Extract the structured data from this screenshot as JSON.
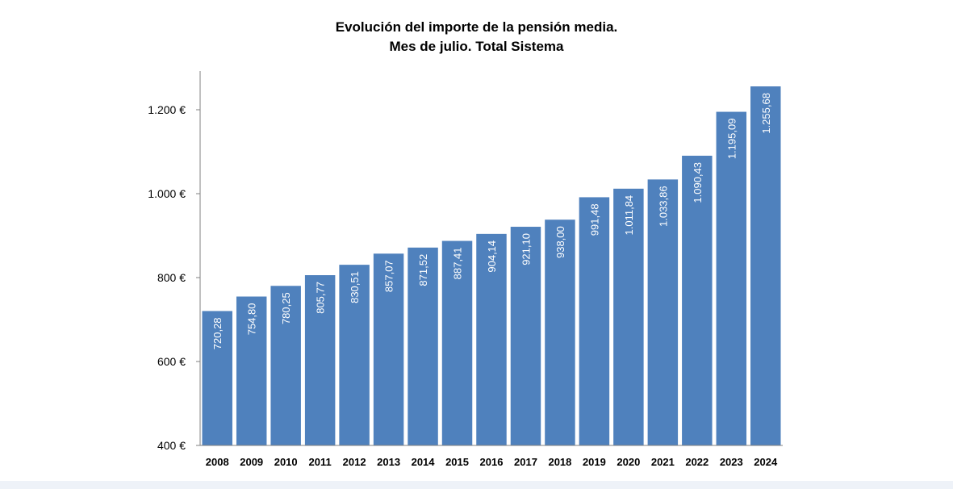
{
  "chart_data": {
    "type": "bar",
    "title_lines": [
      "Evolución del importe de la pensión media.",
      "Mes de julio. Total Sistema"
    ],
    "categories": [
      "2008",
      "2009",
      "2010",
      "2011",
      "2012",
      "2013",
      "2014",
      "2015",
      "2016",
      "2017",
      "2018",
      "2019",
      "2020",
      "2021",
      "2022",
      "2023",
      "2024"
    ],
    "values": [
      720.28,
      754.8,
      780.25,
      805.77,
      830.51,
      857.07,
      871.52,
      887.41,
      904.14,
      921.1,
      938.0,
      991.48,
      1011.84,
      1033.86,
      1090.43,
      1195.09,
      1255.68
    ],
    "data_labels": [
      "720,28",
      "754,80",
      "780,25",
      "805,77",
      "830,51",
      "857,07",
      "871,52",
      "887,41",
      "904,14",
      "921,10",
      "938,00",
      "991,48",
      "1.011,84",
      "1.033,86",
      "1.090,43",
      "1.195,09",
      "1.255,68"
    ],
    "ylim": [
      400,
      1300
    ],
    "yticks": [
      400,
      600,
      800,
      1000,
      1200
    ],
    "ytick_labels": [
      "400 €",
      "600 €",
      "800 €",
      "1.000 €",
      "1.200 €"
    ],
    "xlabel": "",
    "ylabel": "",
    "grid": false,
    "bar_color": "#4f81bd",
    "label_color": "#ffffff"
  }
}
